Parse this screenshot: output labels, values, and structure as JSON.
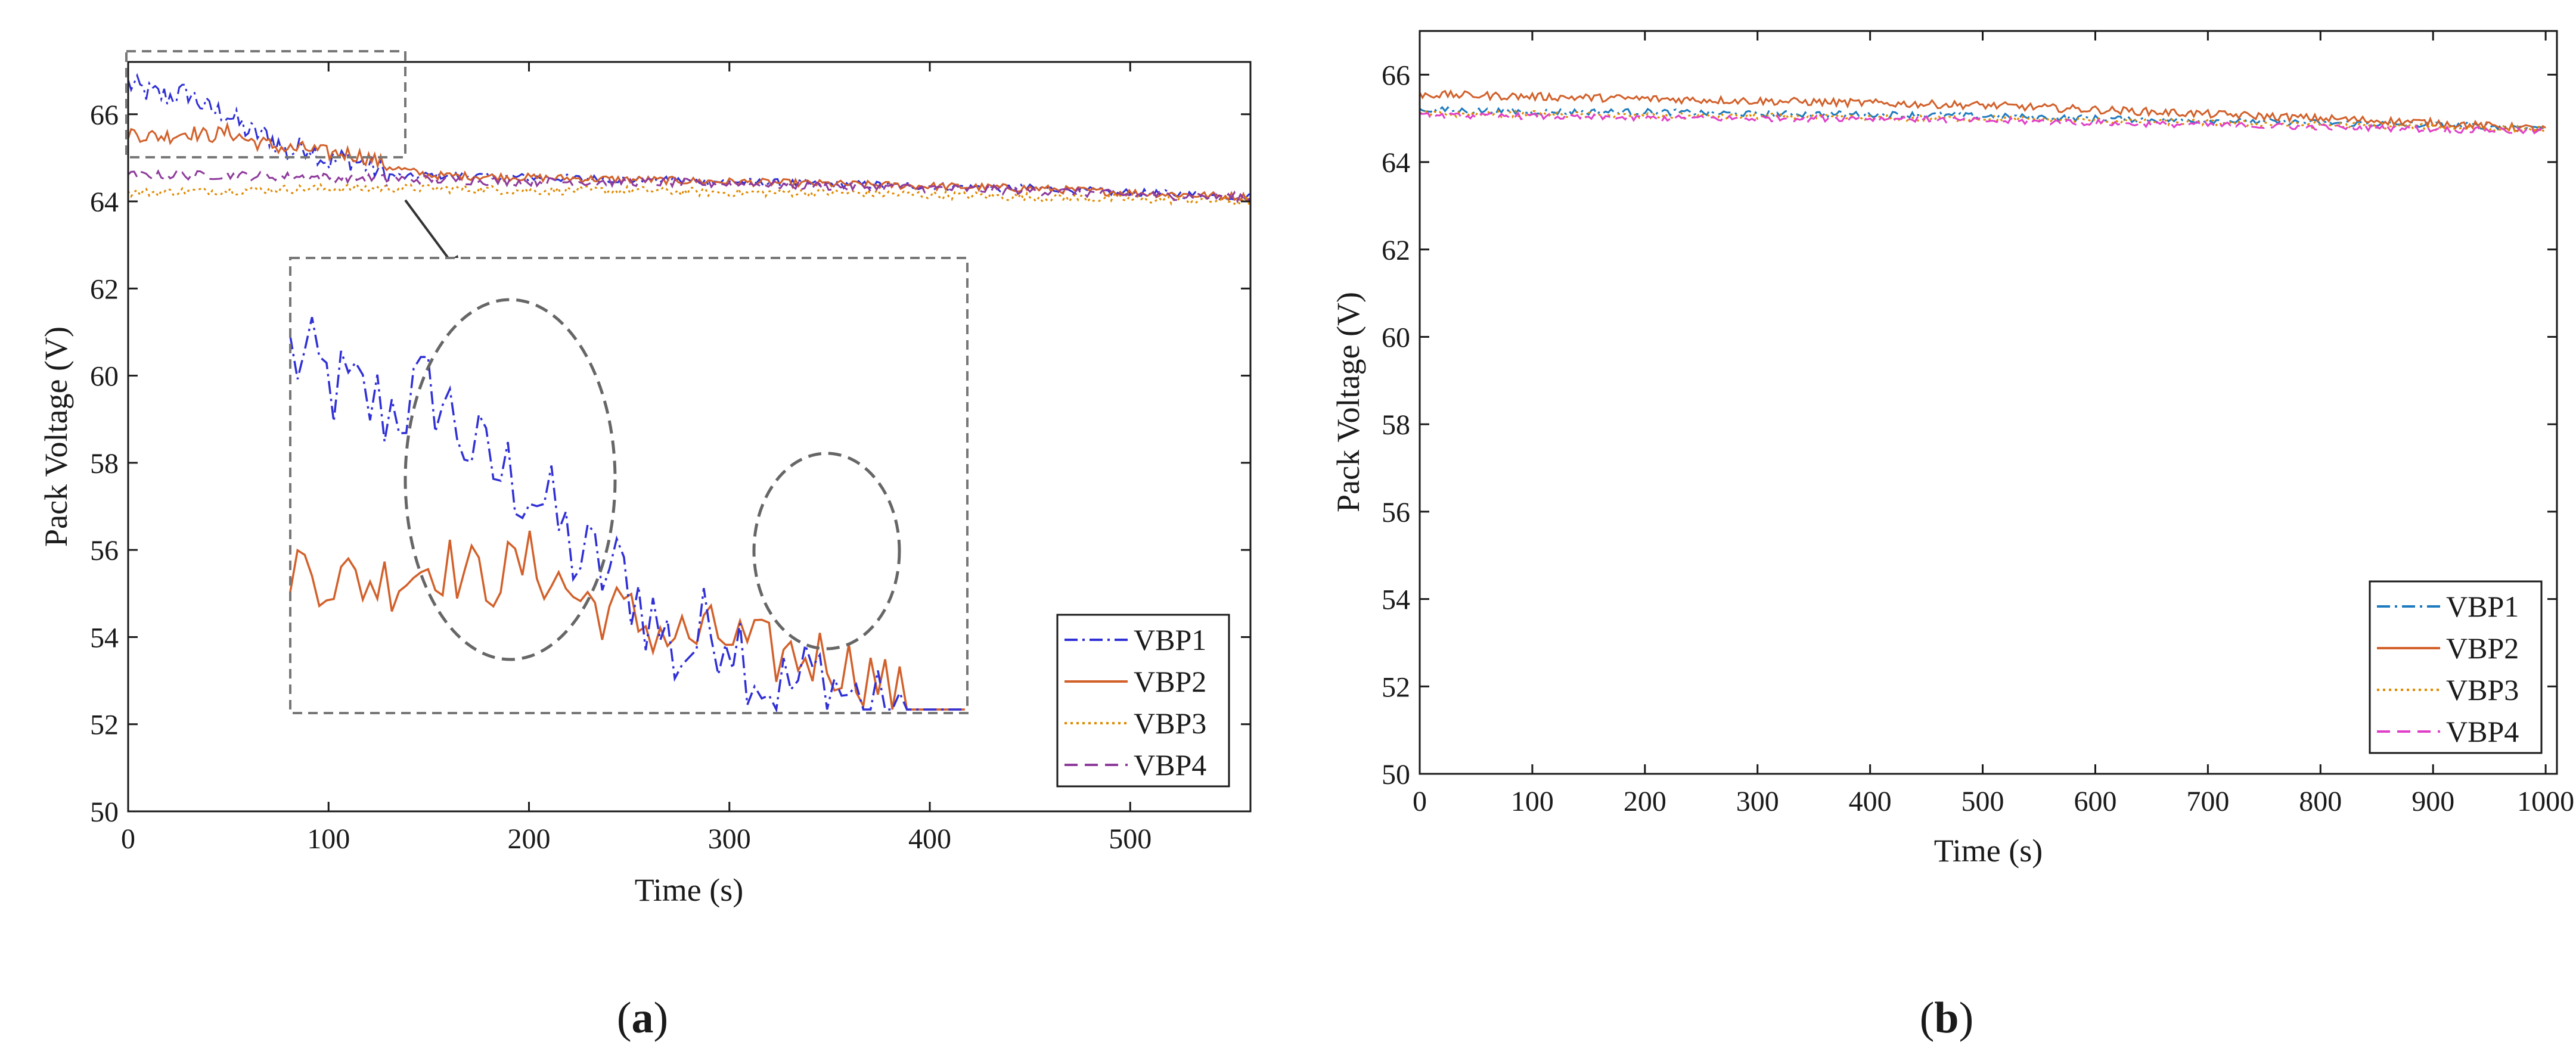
{
  "panels": [
    {
      "id": "a",
      "caption_letter": "a",
      "xlabel": "Time (s)",
      "ylabel": "Pack Voltage (V)",
      "xticks": [
        "0",
        "100",
        "200",
        "300",
        "400",
        "500"
      ],
      "yticks": [
        "50",
        "52",
        "54",
        "56",
        "58",
        "60",
        "62",
        "64",
        "66"
      ],
      "legend": [
        "VBP1",
        "VBP2",
        "VBP3",
        "VBP4"
      ],
      "inset": {
        "source_x": [
          0,
          140
        ],
        "source_y": [
          64.8,
          67.2
        ]
      }
    },
    {
      "id": "b",
      "caption_letter": "b",
      "xlabel": "Time (s)",
      "ylabel": "Pack Voltage (V)",
      "xticks": [
        "0",
        "100",
        "200",
        "300",
        "400",
        "500",
        "600",
        "700",
        "800",
        "900",
        "1000"
      ],
      "yticks": [
        "50",
        "52",
        "54",
        "56",
        "58",
        "60",
        "62",
        "64",
        "66"
      ],
      "legend": [
        "VBP1",
        "VBP2",
        "VBP3",
        "VBP4"
      ]
    }
  ],
  "colors": {
    "a": {
      "VBP1": "#2f2fd6",
      "VBP2": "#d2602a",
      "VBP3": "#e08a00",
      "VBP4": "#8e3a9c"
    },
    "b": {
      "VBP1": "#1f7bbf",
      "VBP2": "#d2602a",
      "VBP3": "#e08a00",
      "VBP4": "#e040c8"
    },
    "frame": "#1a1a1a",
    "annotation": "#666666"
  },
  "chart_data": [
    {
      "type": "line",
      "title": "",
      "panel": "a",
      "xlabel": "Time (s)",
      "ylabel": "Pack Voltage (V)",
      "xlim": [
        0,
        560
      ],
      "ylim": [
        50,
        67.2
      ],
      "legend_position": "bottom-right",
      "series": [
        {
          "name": "VBP1",
          "style": "dash-dot",
          "x": [
            0,
            10,
            20,
            30,
            40,
            50,
            60,
            70,
            80,
            90,
            100,
            110,
            120,
            130,
            140,
            150,
            200,
            250,
            300,
            350,
            400,
            450,
            500,
            560
          ],
          "values": [
            66.7,
            66.5,
            66.4,
            66.5,
            66.1,
            66.0,
            65.6,
            65.5,
            65.1,
            65.3,
            64.9,
            65.0,
            64.8,
            64.6,
            64.55,
            64.6,
            64.55,
            64.5,
            64.45,
            64.4,
            64.35,
            64.3,
            64.2,
            64.1
          ]
        },
        {
          "name": "VBP2",
          "style": "solid",
          "x": [
            0,
            10,
            20,
            30,
            40,
            50,
            60,
            70,
            80,
            90,
            100,
            110,
            120,
            130,
            140,
            150,
            200,
            250,
            300,
            350,
            400,
            450,
            500,
            560
          ],
          "values": [
            65.6,
            65.5,
            65.5,
            65.6,
            65.5,
            65.6,
            65.4,
            65.3,
            65.2,
            65.2,
            65.1,
            65.1,
            65.0,
            64.8,
            64.7,
            64.6,
            64.55,
            64.5,
            64.45,
            64.4,
            64.35,
            64.3,
            64.2,
            64.1
          ]
        },
        {
          "name": "VBP3",
          "style": "dotted",
          "x": [
            0,
            50,
            100,
            150,
            200,
            250,
            300,
            350,
            400,
            450,
            500,
            560
          ],
          "values": [
            64.2,
            64.25,
            64.3,
            64.3,
            64.25,
            64.25,
            64.2,
            64.2,
            64.15,
            64.1,
            64.05,
            64.0
          ]
        },
        {
          "name": "VBP4",
          "style": "dashed",
          "x": [
            0,
            50,
            100,
            150,
            200,
            250,
            300,
            350,
            400,
            450,
            500,
            560
          ],
          "values": [
            64.6,
            64.6,
            64.55,
            64.5,
            64.45,
            64.45,
            64.4,
            64.35,
            64.3,
            64.25,
            64.15,
            64.1
          ]
        }
      ]
    },
    {
      "type": "line",
      "title": "",
      "panel": "b",
      "xlabel": "Time (s)",
      "ylabel": "Pack Voltage (V)",
      "xlim": [
        0,
        1010
      ],
      "ylim": [
        50,
        67
      ],
      "legend_position": "bottom-right",
      "series": [
        {
          "name": "VBP1",
          "style": "dash-dot",
          "x": [
            0,
            100,
            200,
            300,
            400,
            500,
            600,
            700,
            800,
            900,
            1000
          ],
          "values": [
            65.2,
            65.15,
            65.15,
            65.1,
            65.1,
            65.05,
            65.0,
            64.95,
            64.9,
            64.85,
            64.8
          ]
        },
        {
          "name": "VBP2",
          "style": "solid",
          "x": [
            0,
            100,
            200,
            300,
            400,
            500,
            600,
            700,
            800,
            900,
            1000
          ],
          "values": [
            65.55,
            65.5,
            65.45,
            65.4,
            65.35,
            65.3,
            65.2,
            65.1,
            65.0,
            64.9,
            64.75
          ]
        },
        {
          "name": "VBP3",
          "style": "dotted",
          "x": [
            0,
            100,
            200,
            300,
            400,
            500,
            600,
            700,
            800,
            900,
            1000
          ],
          "values": [
            65.1,
            65.1,
            65.05,
            65.05,
            65.0,
            65.0,
            64.95,
            64.9,
            64.85,
            64.8,
            64.75
          ]
        },
        {
          "name": "VBP4",
          "style": "dashed",
          "x": [
            0,
            100,
            200,
            300,
            400,
            500,
            600,
            700,
            800,
            900,
            1000
          ],
          "values": [
            65.05,
            65.05,
            65.0,
            65.0,
            65.0,
            64.95,
            64.9,
            64.85,
            64.8,
            64.75,
            64.7
          ]
        }
      ]
    }
  ]
}
